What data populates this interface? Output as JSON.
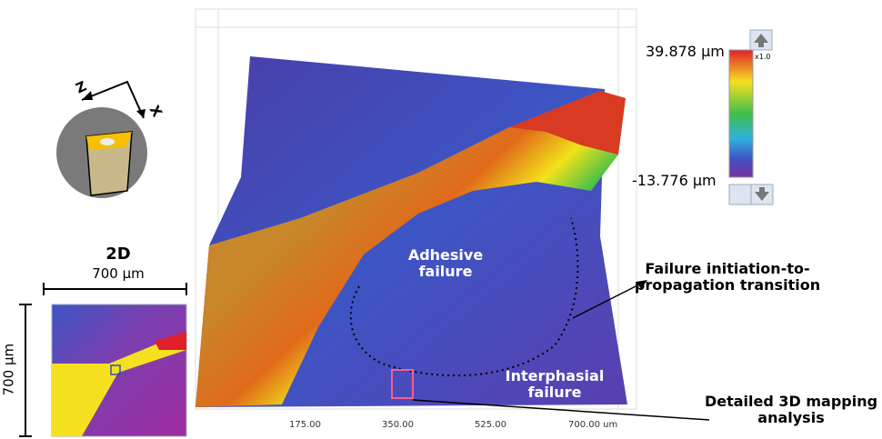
{
  "axis_3d": {
    "tick_labels": [
      "175.00",
      "350.00",
      "525.00",
      "700.00 um"
    ]
  },
  "color_scale": {
    "max_label": "39.878 µm",
    "min_label": "-13.776 µm",
    "zoom": "x1.0"
  },
  "orientation": {
    "axis_z": "Z",
    "axis_x": "X"
  },
  "inset_2d": {
    "title": "2D",
    "width_label": "700 µm",
    "height_label": "700 µm"
  },
  "annotations": {
    "adhesive": "Adhesive failure",
    "transition": "Failure initiation-to-propagation transition",
    "interphasial": "Interphasial failure",
    "mapping": "Detailed 3D mapping analysis"
  }
}
